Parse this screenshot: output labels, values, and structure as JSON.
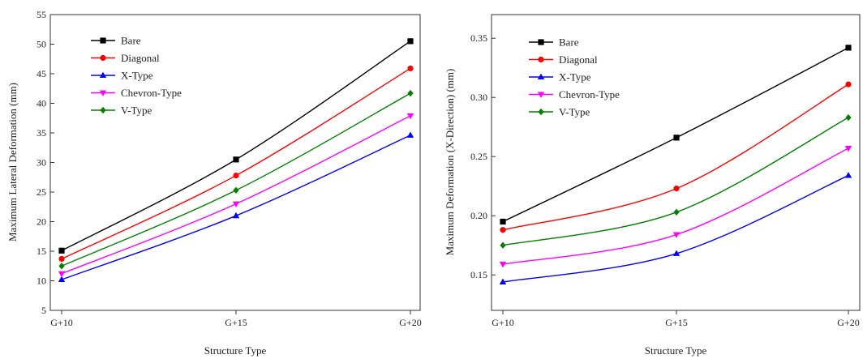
{
  "chart_data": [
    {
      "type": "line",
      "categories": [
        "G+10",
        "G+15",
        "G+20"
      ],
      "xlabel": "Structure Type",
      "ylabel": "Maximum Lateral Deformation (mm)",
      "ylim": [
        5,
        55
      ],
      "yticks": [
        5,
        10,
        15,
        20,
        25,
        30,
        35,
        40,
        45,
        50,
        55
      ],
      "legend_position": "top-left",
      "series": [
        {
          "name": "Bare",
          "color": "#000000",
          "marker": "square",
          "values": [
            15.1,
            30.5,
            50.5
          ]
        },
        {
          "name": "Diagonal",
          "color": "#ff0000",
          "marker": "circle",
          "values": [
            13.7,
            27.8,
            45.9
          ]
        },
        {
          "name": "X-Type",
          "color": "#0000ff",
          "marker": "triangle-up",
          "values": [
            10.2,
            21.0,
            34.6
          ]
        },
        {
          "name": "Chevron-Type",
          "color": "#ff00ff",
          "marker": "triangle-down",
          "values": [
            11.2,
            23.0,
            37.9
          ]
        },
        {
          "name": "V-Type",
          "color": "#008000",
          "marker": "diamond",
          "values": [
            12.5,
            25.3,
            41.7
          ]
        }
      ]
    },
    {
      "type": "line",
      "categories": [
        "G+10",
        "G+15",
        "G+20"
      ],
      "xlabel": "Structure Type",
      "ylabel": "Maximum Deformation (X-Direction) (mm)",
      "ylim": [
        0.12,
        0.37
      ],
      "yticks": [
        "0.15",
        "0.20",
        "0.25",
        "0.30",
        "0.35"
      ],
      "legend_position": "top-left",
      "series": [
        {
          "name": "Bare",
          "color": "#000000",
          "marker": "square",
          "values": [
            0.195,
            0.266,
            0.342
          ]
        },
        {
          "name": "Diagonal",
          "color": "#ff0000",
          "marker": "circle",
          "values": [
            0.188,
            0.223,
            0.311
          ]
        },
        {
          "name": "X-Type",
          "color": "#0000ff",
          "marker": "triangle-up",
          "values": [
            0.144,
            0.168,
            0.234
          ]
        },
        {
          "name": "Chevron-Type",
          "color": "#ff00ff",
          "marker": "triangle-down",
          "values": [
            0.159,
            0.184,
            0.257
          ]
        },
        {
          "name": "V-Type",
          "color": "#008000",
          "marker": "diamond",
          "values": [
            0.175,
            0.203,
            0.283
          ]
        }
      ]
    }
  ]
}
